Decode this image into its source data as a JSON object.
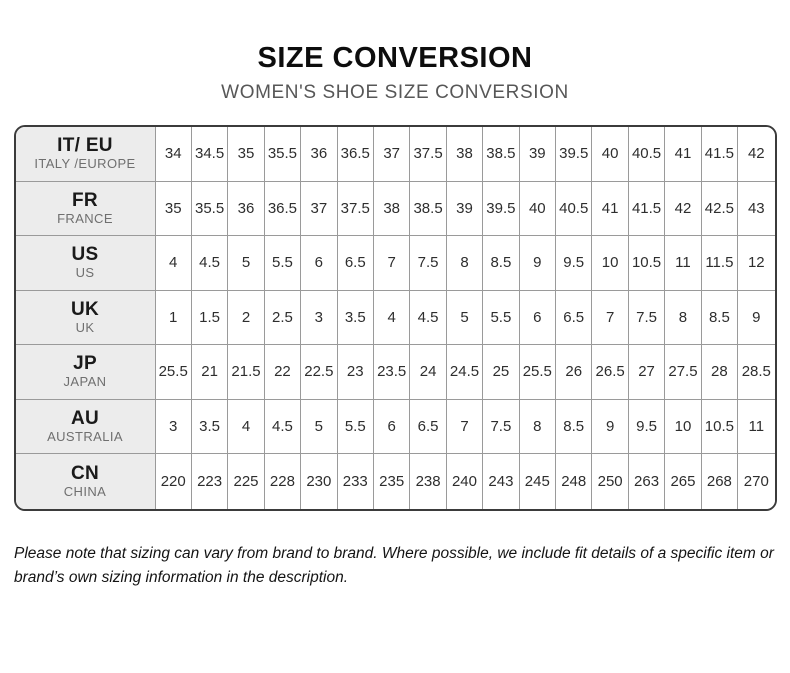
{
  "header": {
    "title": "SIZE CONVERSION",
    "subtitle": "WOMEN'S SHOE SIZE CONVERSION"
  },
  "table": {
    "rows": [
      {
        "code": "IT/ EU",
        "name": "ITALY /EUROPE",
        "values": [
          "34",
          "34.5",
          "35",
          "35.5",
          "36",
          "36.5",
          "37",
          "37.5",
          "38",
          "38.5",
          "39",
          "39.5",
          "40",
          "40.5",
          "41",
          "41.5",
          "42"
        ]
      },
      {
        "code": "FR",
        "name": "FRANCE",
        "values": [
          "35",
          "35.5",
          "36",
          "36.5",
          "37",
          "37.5",
          "38",
          "38.5",
          "39",
          "39.5",
          "40",
          "40.5",
          "41",
          "41.5",
          "42",
          "42.5",
          "43"
        ]
      },
      {
        "code": "US",
        "name": "US",
        "values": [
          "4",
          "4.5",
          "5",
          "5.5",
          "6",
          "6.5",
          "7",
          "7.5",
          "8",
          "8.5",
          "9",
          "9.5",
          "10",
          "10.5",
          "11",
          "11.5",
          "12"
        ]
      },
      {
        "code": "UK",
        "name": "UK",
        "values": [
          "1",
          "1.5",
          "2",
          "2.5",
          "3",
          "3.5",
          "4",
          "4.5",
          "5",
          "5.5",
          "6",
          "6.5",
          "7",
          "7.5",
          "8",
          "8.5",
          "9"
        ]
      },
      {
        "code": "JP",
        "name": "JAPAN",
        "values": [
          "25.5",
          "21",
          "21.5",
          "22",
          "22.5",
          "23",
          "23.5",
          "24",
          "24.5",
          "25",
          "25.5",
          "26",
          "26.5",
          "27",
          "27.5",
          "28",
          "28.5"
        ]
      },
      {
        "code": "AU",
        "name": "AUSTRALIA",
        "values": [
          "3",
          "3.5",
          "4",
          "4.5",
          "5",
          "5.5",
          "6",
          "6.5",
          "7",
          "7.5",
          "8",
          "8.5",
          "9",
          "9.5",
          "10",
          "10.5",
          "11"
        ]
      },
      {
        "code": "CN",
        "name": "CHINA",
        "values": [
          "220",
          "223",
          "225",
          "228",
          "230",
          "233",
          "235",
          "238",
          "240",
          "243",
          "245",
          "248",
          "250",
          "263",
          "265",
          "268",
          "270"
        ]
      }
    ]
  },
  "note": "Please note that sizing can vary from brand to brand. Where possible, we include fit details of a specific item or brand’s own sizing information in the description."
}
